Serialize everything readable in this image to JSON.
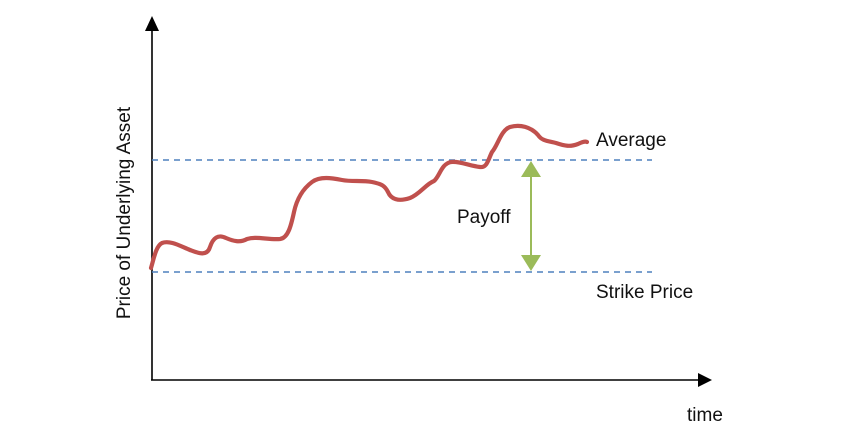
{
  "diagram": {
    "y_axis_label": "Price of Underlying Asset",
    "x_axis_label": "time",
    "average_label": "Average",
    "strike_label": "Strike Price",
    "payoff_label": "Payoff"
  },
  "colors": {
    "axis": "#000000",
    "price_path": "#c0504d",
    "reference_lines": "#4f81bd",
    "payoff_arrow": "#9bbb59",
    "background": "#ffffff"
  },
  "lines": {
    "average": "dashed",
    "strike": "dashed"
  }
}
